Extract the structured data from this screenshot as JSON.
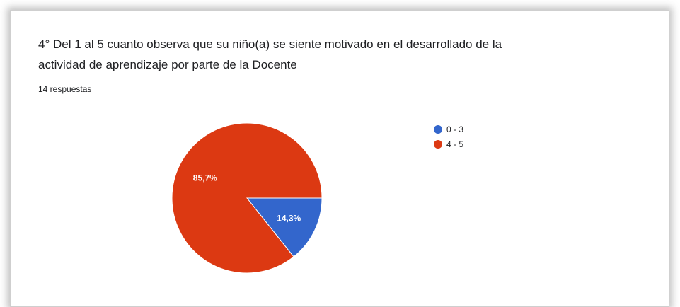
{
  "question": {
    "title_line1": "4° Del 1 al 5 cuanto observa que su niño(a) se siente motivado en el desarrollado de la",
    "title_line2": "actividad de aprendizaje por parte de la Docente",
    "responses": "14 respuestas"
  },
  "chart_data": {
    "type": "pie",
    "title": "",
    "legend_position": "right",
    "categories": [
      "0 - 3",
      "4 - 5"
    ],
    "values": [
      14.3,
      85.7
    ],
    "value_labels": [
      "14,3%",
      "85,7%"
    ],
    "colors": [
      "#3366cc",
      "#dc3912"
    ]
  }
}
